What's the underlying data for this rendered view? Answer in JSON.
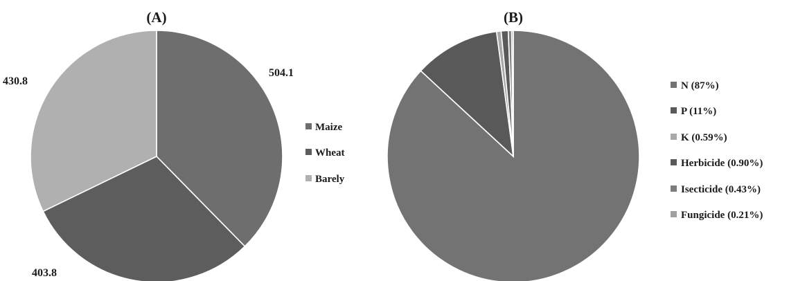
{
  "chart_data": [
    {
      "type": "pie",
      "title": "(A)",
      "categories": [
        "Maize",
        "Wheat",
        "Barely"
      ],
      "values": [
        504.1,
        403.8,
        430.8
      ],
      "data_labels": [
        "504.1",
        "403.8",
        "430.8"
      ],
      "colors": [
        "#6e6e6e",
        "#5d5d5d",
        "#b0b0b0"
      ],
      "legend": "right",
      "start_angle_deg": 0,
      "direction": "clockwise"
    },
    {
      "type": "pie",
      "title": "(B)",
      "categories": [
        "N (87%)",
        "P (11%)",
        "K (0.59%)",
        "Herbicide (0.90%)",
        "Isecticide (0.43%)",
        "Fungicide (0.21%)"
      ],
      "values": [
        87,
        11,
        0.59,
        0.9,
        0.43,
        0.21
      ],
      "colors": [
        "#737373",
        "#595959",
        "#a9a9a9",
        "#5a5a5a",
        "#7d7d7d",
        "#a0a0a0"
      ],
      "legend": "right",
      "start_angle_deg": 0,
      "direction": "clockwise"
    }
  ]
}
